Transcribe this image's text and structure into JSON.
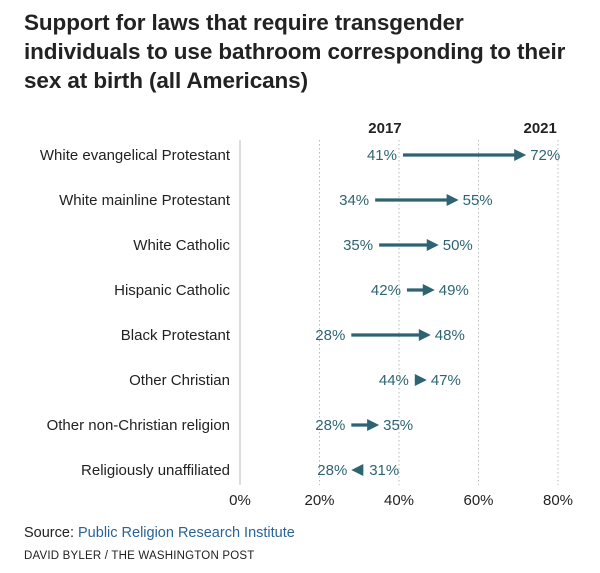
{
  "title": "Support for laws that require transgender individuals to use bathroom corresponding to their sex at birth (all Americans)",
  "source": {
    "prefix": "Source:",
    "name": "Public Religion Research Institute"
  },
  "credit": "DAVID BYLER / THE WASHINGTON POST",
  "colors": {
    "arrow": "#2e6472",
    "label": "#2e6472",
    "grid": "#bbbbbb",
    "link": "#2a6496"
  },
  "chart_data": {
    "type": "dumbbell-arrow",
    "series": [
      {
        "name": "2017"
      },
      {
        "name": "2021"
      }
    ],
    "x_range": [
      0,
      80
    ],
    "x_ticks": [
      0,
      20,
      40,
      60,
      80
    ],
    "x_tick_labels": [
      "0%",
      "20%",
      "40%",
      "60%",
      "80%"
    ],
    "grid": true,
    "rows": [
      {
        "category": "White evangelical Protestant",
        "start": 41,
        "end": 72,
        "start_label": "41%",
        "end_label": "72%"
      },
      {
        "category": "White mainline Protestant",
        "start": 34,
        "end": 55,
        "start_label": "34%",
        "end_label": "55%"
      },
      {
        "category": "White Catholic",
        "start": 35,
        "end": 50,
        "start_label": "35%",
        "end_label": "50%"
      },
      {
        "category": "Hispanic Catholic",
        "start": 42,
        "end": 49,
        "start_label": "42%",
        "end_label": "49%"
      },
      {
        "category": "Black Protestant",
        "start": 28,
        "end": 48,
        "start_label": "28%",
        "end_label": "48%"
      },
      {
        "category": "Other Christian",
        "start": 44,
        "end": 47,
        "start_label": "44%",
        "end_label": "47%"
      },
      {
        "category": "Other non-Christian religion",
        "start": 28,
        "end": 35,
        "start_label": "28%",
        "end_label": "35%"
      },
      {
        "category": "Religiously unaffiliated",
        "start": 31,
        "end": 28,
        "start_label": "31%",
        "end_label": "28%"
      }
    ]
  }
}
